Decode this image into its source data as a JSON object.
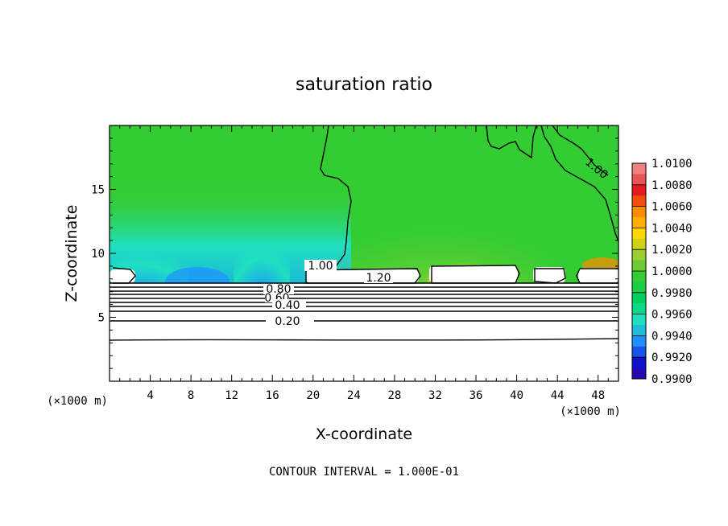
{
  "chart_data": {
    "type": "heatmap",
    "title": "saturation ratio",
    "xlabel": "X-coordinate",
    "ylabel": "Z-coordinate",
    "x_unit_left": "(×1000 m)",
    "x_unit_right": "(×1000 m)",
    "xlim": [
      0,
      50
    ],
    "ylim": [
      0,
      20
    ],
    "x_ticks": [
      4,
      8,
      12,
      16,
      20,
      24,
      28,
      32,
      36,
      40,
      44,
      48
    ],
    "y_ticks": [
      5,
      10,
      15
    ],
    "colorbar": {
      "min": 0.99,
      "max": 1.01,
      "labels": [
        "1.0100",
        "1.0080",
        "1.0060",
        "1.0040",
        "1.0020",
        "1.0000",
        "0.9980",
        "0.9960",
        "0.9940",
        "0.9920",
        "0.9900"
      ],
      "colors": [
        "#f08080",
        "#e41a1c",
        "#ff8c00",
        "#ffd700",
        "#9acd32",
        "#33cc33",
        "#00d060",
        "#1fe0c0",
        "#1e90ff",
        "#1010d0",
        "#400090"
      ]
    },
    "contour_labels": [
      {
        "text": "1.00",
        "x": 20.3,
        "z": 8.9
      },
      {
        "text": "1.20",
        "x": 26.2,
        "z": 8.2
      },
      {
        "text": "1.00",
        "x": 46.3,
        "z": 16.6
      },
      {
        "text": "0.80",
        "x": 17.6,
        "z": 7.2
      },
      {
        "text": "0.60",
        "x": 17.2,
        "z": 6.6
      },
      {
        "text": "0.40",
        "x": 17.6,
        "z": 5.9
      },
      {
        "text": "0.20",
        "x": 17.6,
        "z": 4.6
      }
    ],
    "contour_levels_below": [
      0.1,
      0.2,
      0.3,
      0.4,
      0.5,
      0.6,
      0.7,
      0.8,
      0.9
    ],
    "contour_interval_text": "CONTOUR INTERVAL = 1.000E-01"
  }
}
